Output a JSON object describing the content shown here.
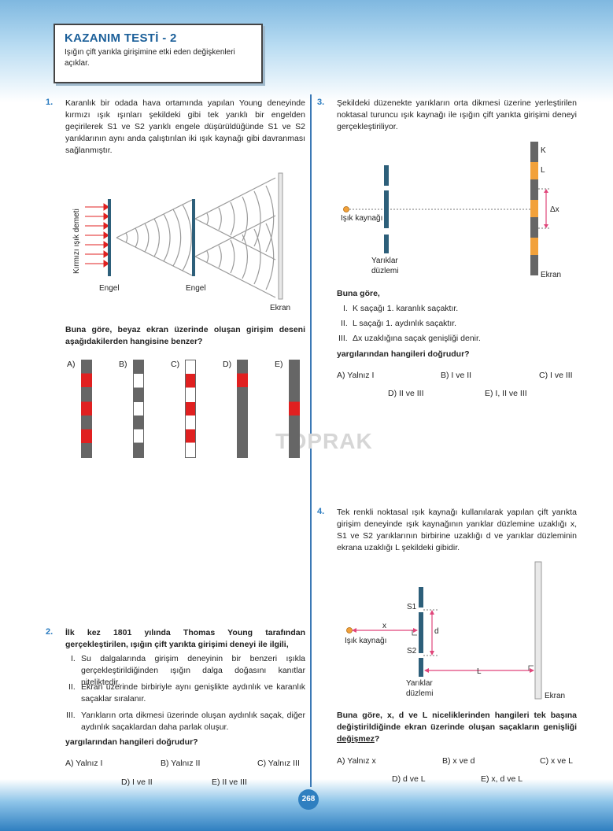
{
  "header": {
    "title": "KAZANIM TESTİ - 2",
    "subtitle": "Işığın çift yarıkla girişimine etki eden değişkenleri açıklar."
  },
  "q1": {
    "number": "1.",
    "text": "Karanlık bir odada hava ortamında yapılan Young deneyinde kırmızı ışık ışınları şekildeki gibi tek yarıklı bir engelden geçirilerek S1 ve S2 yarıklı engele düşürüldüğünde S1 ve S2 yarıklarının aynı anda çalıştırılan iki ışık kaynağı gibi davranması sağlanmıştır.",
    "fig_beam_label": "Kırmızı ışık demeti",
    "fig_barrier1": "Engel",
    "fig_barrier2": "Engel",
    "fig_screen": "Ekran",
    "question": "Buna göre, beyaz ekran üzerinde oluşan girişim deseni aşağıdakilerden hangisine benzer?",
    "options": [
      "A)",
      "B)",
      "C)",
      "D)",
      "E)"
    ]
  },
  "q2": {
    "number": "2.",
    "question": "İlk kez 1801 yılında Thomas Young tarafından gerçekleştirilen, ışığın çift yarıkta girişimi deneyi ile ilgili,",
    "statements": [
      {
        "id": "I.",
        "text": "Su dalgalarında girişim deneyinin bir benzeri ışıkla gerçekleştirildiğinden ışığın dalga doğasını kanıtlar niteliktedir."
      },
      {
        "id": "II.",
        "text": "Ekran üzerinde birbiriyle aynı genişlikte aydınlık ve karanlık saçaklar sıralanır."
      },
      {
        "id": "III.",
        "text": "Yarıkların orta dikmesi üzerinde oluşan aydınlık saçak, diğer aydınlık saçaklardan daha parlak oluşur."
      }
    ],
    "prompt": "yargılarından hangileri doğrudur?",
    "options": [
      "A) Yalnız I",
      "B) Yalnız II",
      "C) Yalnız III",
      "D) I ve II",
      "E) II ve III"
    ]
  },
  "q3": {
    "number": "3.",
    "text": "Şekildeki düzenekte yarıkların orta dikmesi üzerine yerleştirilen noktasal turuncu ışık kaynağı ile ışığın çift yarıkta girişimi deneyi gerçekleştiriliyor.",
    "fig_source": "Işık kaynağı",
    "fig_slits": "Yarıklar düzlemi",
    "fig_K": "K",
    "fig_L": "L",
    "fig_dx": "Δx",
    "fig_screen": "Ekran",
    "lead": "Buna göre,",
    "statements": [
      {
        "id": "I.",
        "text": "K saçağı 1. karanlık saçaktır."
      },
      {
        "id": "II.",
        "text": "L saçağı 1. aydınlık saçaktır."
      },
      {
        "id": "III.",
        "text": "Δx uzaklığına saçak genişliği denir."
      }
    ],
    "prompt": "yargılarından hangileri doğrudur?",
    "options": [
      "A) Yalnız I",
      "B) I ve II",
      "C) I ve III",
      "D) II ve III",
      "E) I, II ve III"
    ]
  },
  "q4": {
    "number": "4.",
    "text": "Tek renkli noktasal ışık kaynağı kullanılarak yapılan çift yarıkta girişim deneyinde ışık kaynağının yarıklar düzlemine uzaklığı x, S1 ve S2 yarıklarının birbirine uzaklığı d ve yarıklar düzleminin ekrana uzaklığı L şekildeki gibidir.",
    "fig_source": "Işık kaynağı",
    "fig_x": "x",
    "fig_d": "d",
    "fig_L": "L",
    "fig_S1": "S1",
    "fig_S2": "S2",
    "fig_slits": "Yarıklar düzlemi",
    "fig_screen": "Ekran",
    "question_a": "Buna göre, x, d ve L niceliklerinden hangileri tek başına değiştirildiğinde ekran üzerinde oluşan saçakların genişliği",
    "question_b": "değişmez",
    "question_c": "?",
    "options": [
      "A) Yalnız x",
      "B) x ve d",
      "C) x ve L",
      "D) d ve L",
      "E) x, d ve L"
    ]
  },
  "watermark": "TOPRAK",
  "page_number": "268",
  "colors": {
    "accent": "#2a7bc0",
    "red": "#e02020",
    "gray": "#666666",
    "orange": "#f2a13a",
    "pink": "#e0457a",
    "slit": "#2d5f7a"
  }
}
